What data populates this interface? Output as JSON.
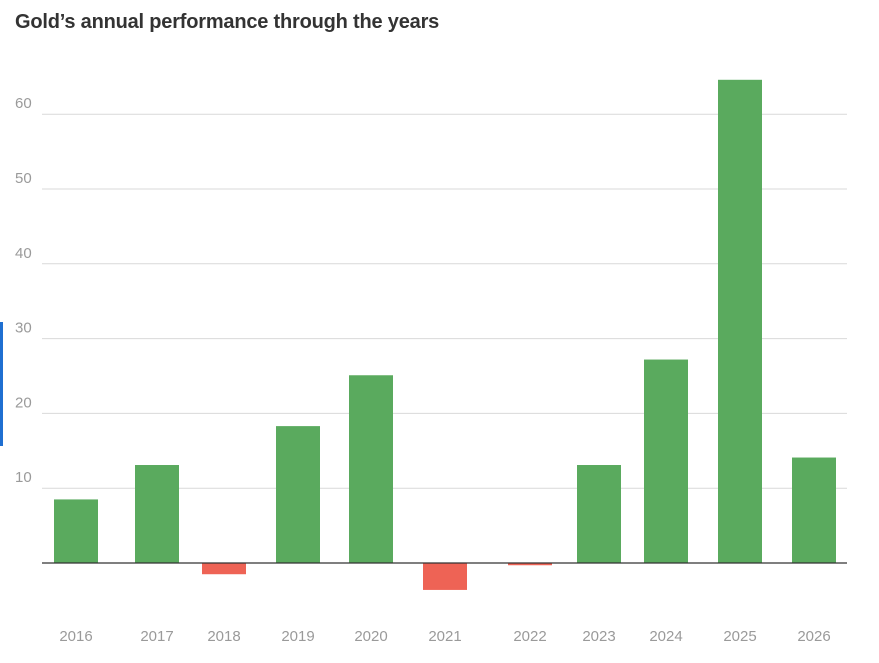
{
  "header": {
    "title": "Gold’s annual performance through the years"
  },
  "chart_data": {
    "type": "bar",
    "title": "Gold’s annual performance through the years",
    "xlabel": "",
    "ylabel": "",
    "categories": [
      "2016",
      "2017",
      "2018",
      "2019",
      "2020",
      "2021",
      "2022",
      "2023",
      "2024",
      "2025",
      "2026"
    ],
    "values": [
      8.5,
      13.1,
      -1.5,
      18.3,
      25.1,
      -3.6,
      -0.3,
      13.1,
      27.2,
      64.6,
      14.1
    ],
    "yticks": [
      10,
      20,
      30,
      40,
      50,
      60
    ],
    "ylim": [
      -4,
      68
    ],
    "grid": true,
    "legend": "none",
    "colors": {
      "positive": "#5aaa5e",
      "negative": "#ee6355",
      "grid": "#d9d9d9",
      "axis": "#333333"
    }
  }
}
